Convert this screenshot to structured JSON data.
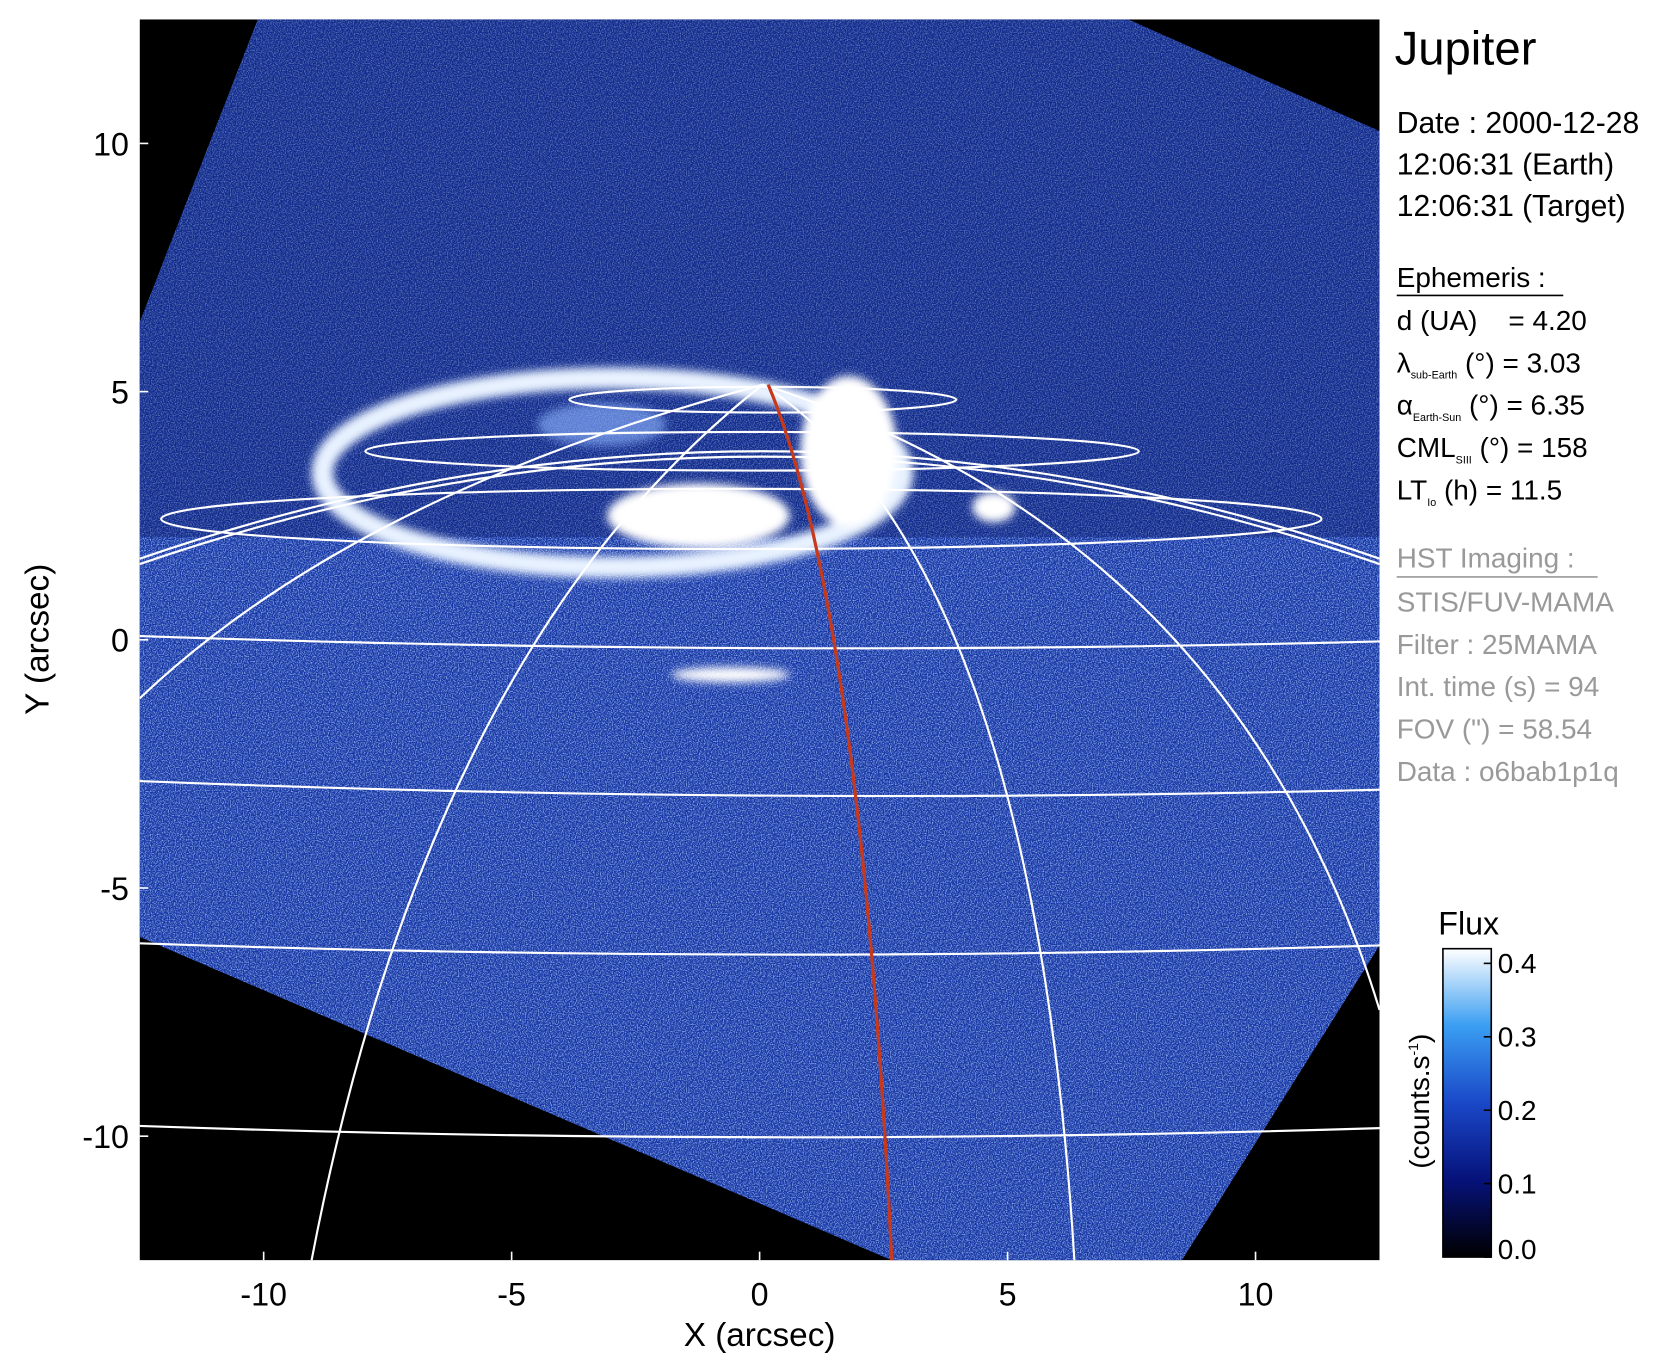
{
  "chart_data": {
    "type": "image",
    "xlabel": "X (arcsec)",
    "ylabel": "Y (arcsec)",
    "xlim": [
      -12.5,
      12.5
    ],
    "ylim": [
      -12.5,
      12.5
    ],
    "xticks": [
      -10,
      -5,
      0,
      5,
      10
    ],
    "yticks": [
      -10,
      -5,
      0,
      5,
      10
    ],
    "colorbar": {
      "title": "Flux",
      "label": {
        "text": "(counts.s",
        "sup": "-1",
        "end": ")"
      },
      "clim": [
        0,
        0.42
      ],
      "ticks": [
        {
          "value": 0,
          "label": "0.0"
        },
        0.1,
        0.2,
        0.3,
        0.4
      ],
      "colormap": [
        "#000000",
        "#06127a",
        "#1a48c8",
        "#3a9ef2",
        "#ffffff"
      ]
    },
    "info": {
      "title": "Jupiter",
      "date_lines": [
        "Date : 2000-12-28",
        "12:06:31 (Earth)",
        "12:06:31 (Target)"
      ],
      "ephemeris_header": "Ephemeris :",
      "ephemeris": [
        {
          "main": "d (UA)    = 4.20"
        },
        {
          "main": "λ",
          "sub": "sub-Earth",
          "rest": " (°) = 3.03"
        },
        {
          "main": "α",
          "sub": "Earth-Sun",
          "rest": " (°) = 6.35"
        },
        {
          "main": "CML",
          "sub": "SIII",
          "rest": " (°) = 158"
        },
        {
          "main": "LT",
          "sub": "Io",
          "rest": " (h) = 11.5"
        }
      ],
      "imaging_header": "HST Imaging :",
      "imaging": [
        "STIS/FUV-MAMA",
        "Filter : 25MAMA",
        "Int. time (s) = 94",
        "FOV (\") = 58.54",
        "Data : o6bab1p1q"
      ]
    }
  }
}
